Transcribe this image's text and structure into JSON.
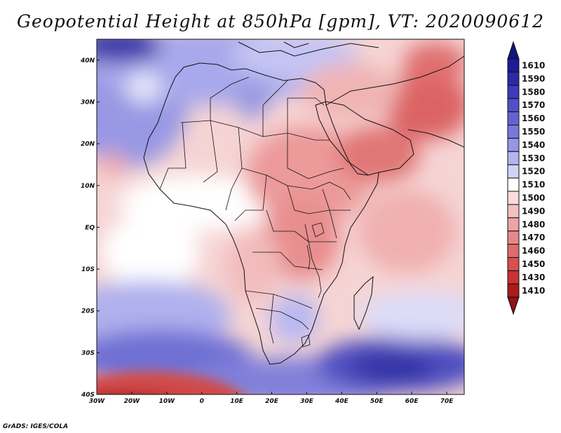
{
  "title": "Geopotential Height at 850hPa [gpm], VT: 2020090612",
  "credit": "GrADS: IGES/COLA",
  "map": {
    "projection": "lat-lon",
    "lon_range": [
      -30,
      75
    ],
    "lat_range": [
      -40,
      45
    ],
    "variable": "Geopotential Height",
    "level": "850hPa",
    "units": "gpm",
    "valid_time": "2020090612",
    "lon_ticks": [
      {
        "value": -30,
        "label": "30W"
      },
      {
        "value": -20,
        "label": "20W"
      },
      {
        "value": -10,
        "label": "10W"
      },
      {
        "value": 0,
        "label": "0"
      },
      {
        "value": 10,
        "label": "10E"
      },
      {
        "value": 20,
        "label": "20E"
      },
      {
        "value": 30,
        "label": "30E"
      },
      {
        "value": 40,
        "label": "40E"
      },
      {
        "value": 50,
        "label": "50E"
      },
      {
        "value": 60,
        "label": "60E"
      },
      {
        "value": 70,
        "label": "70E"
      }
    ],
    "lat_ticks": [
      {
        "value": 40,
        "label": "40N"
      },
      {
        "value": 30,
        "label": "30N"
      },
      {
        "value": 20,
        "label": "20N"
      },
      {
        "value": 10,
        "label": "10N"
      },
      {
        "value": 0,
        "label": "EQ"
      },
      {
        "value": -10,
        "label": "10S"
      },
      {
        "value": -20,
        "label": "20S"
      },
      {
        "value": -30,
        "label": "30S"
      },
      {
        "value": -40,
        "label": "40S"
      }
    ]
  },
  "colorbar": {
    "levels": [
      {
        "label": "1610",
        "color": "#1c1c96"
      },
      {
        "label": "1590",
        "color": "#2a2aa8"
      },
      {
        "label": "1580",
        "color": "#3c3cbc"
      },
      {
        "label": "1570",
        "color": "#5050c8"
      },
      {
        "label": "1560",
        "color": "#6464d0"
      },
      {
        "label": "1550",
        "color": "#7878dc"
      },
      {
        "label": "1540",
        "color": "#9696e6"
      },
      {
        "label": "1530",
        "color": "#b4b4f0"
      },
      {
        "label": "1520",
        "color": "#d2d2f8"
      },
      {
        "label": "1510",
        "color": "#ffffff"
      },
      {
        "label": "1500",
        "color": "#fadcdc"
      },
      {
        "label": "1490",
        "color": "#f4c0c0"
      },
      {
        "label": "1480",
        "color": "#eca4a4"
      },
      {
        "label": "1470",
        "color": "#e68888"
      },
      {
        "label": "1460",
        "color": "#e06c6c"
      },
      {
        "label": "1450",
        "color": "#d85050"
      },
      {
        "label": "1430",
        "color": "#c83232"
      },
      {
        "label": "1410",
        "color": "#a81c1c"
      }
    ],
    "top_extend_color": "#14147a",
    "bottom_extend_color": "#8c1414"
  }
}
